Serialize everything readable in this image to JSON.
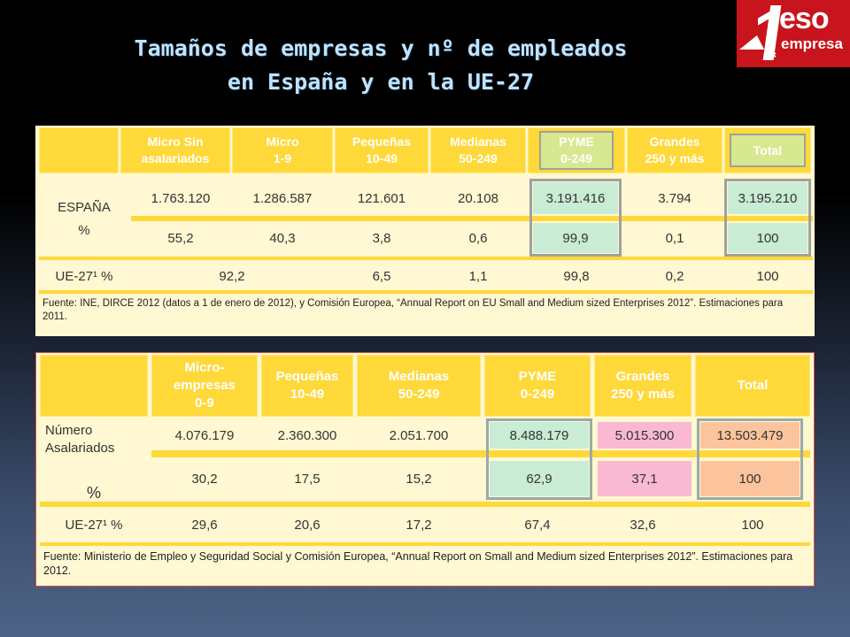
{
  "title": {
    "line1": "Tamaños de empresas y nº de empleados",
    "line2": "en España y en la UE-27"
  },
  "logo": {
    "text1": "eso",
    "text2": "empresa",
    "brand_color": "#c8141c"
  },
  "table1": {
    "headers": [
      [
        "Micro Sin",
        "asalariados"
      ],
      [
        "Micro",
        "1-9"
      ],
      [
        "Pequeñas",
        "10-49"
      ],
      [
        "Medianas",
        "50-249"
      ],
      [
        "PYME",
        "0-249"
      ],
      [
        "Grandes",
        "250 y más"
      ],
      [
        "Total"
      ]
    ],
    "espana_label": "ESPAÑA",
    "pct_label": "%",
    "espana_values": [
      "1.763.120",
      "1.286.587",
      "121.601",
      "20.108",
      "3.191.416",
      "3.794",
      "3.195.210"
    ],
    "espana_pct": [
      "55,2",
      "40,3",
      "3,8",
      "0,6",
      "99,9",
      "0,1",
      "100"
    ],
    "ue_label": "UE-27¹ %",
    "ue_values": [
      "92,2",
      "6,5",
      "1,1",
      "99,8",
      "0,2",
      "100"
    ],
    "source": "Fuente: INE, DIRCE 2012 (datos a 1 de enero de 2012), y Comisión Europea, “Annual Report on EU Small and Medium sized Enterprises 2012”. Estimaciones para 2011."
  },
  "table2": {
    "headers": [
      [
        "Micro-",
        "empresas",
        "0-9"
      ],
      [
        "Pequeñas",
        "10-49"
      ],
      [
        "Medianas",
        "50-249"
      ],
      [
        "PYME",
        "0-249"
      ],
      [
        "Grandes",
        "250 y más"
      ],
      [
        "Total"
      ]
    ],
    "row_label_1": "Número",
    "row_label_2": "Asalariados",
    "pct_label": "%",
    "asalariados_values": [
      "4.076.179",
      "2.360.300",
      "2.051.700",
      "8.488.179",
      "5.015.300",
      "13.503.479"
    ],
    "asalariados_pct": [
      "30,2",
      "17,5",
      "15,2",
      "62,9",
      "37,1",
      "100"
    ],
    "ue_label": "UE-27¹ %",
    "ue_values": [
      "29,6",
      "20,6",
      "17,2",
      "67,4",
      "32,6",
      "100"
    ],
    "source": "Fuente: Ministerio de Empleo y Seguridad Social y Comisión Europea, “Annual Report on  Small and Medium sized Enterprises 2012”. Estimaciones para 2012."
  },
  "colors": {
    "header_yellow": "#ffd83a",
    "table_bg": "#fff8d2",
    "pyme_green": "#c9ecd4",
    "grandes_pink": "#f9b9d3",
    "total_peach": "#fcc49c",
    "title_color": "#bfe3ff"
  }
}
